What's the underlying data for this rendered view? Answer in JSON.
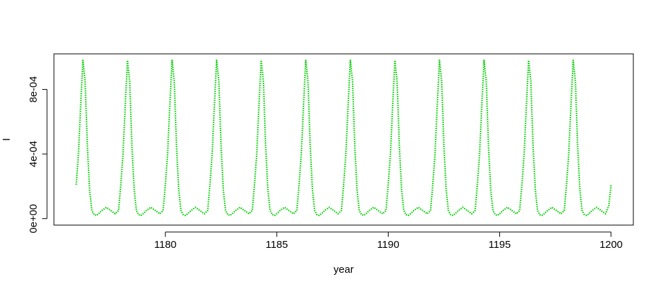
{
  "chart_data": {
    "type": "line",
    "title": "",
    "xlabel": "year",
    "ylabel": "I",
    "xlim": [
      1175.0,
      1201.0
    ],
    "ylim": [
      -4e-05,
      0.00102
    ],
    "x_ticks": [
      {
        "value": 1180,
        "label": "1180"
      },
      {
        "value": 1185,
        "label": "1185"
      },
      {
        "value": 1190,
        "label": "1190"
      },
      {
        "value": 1195,
        "label": "1195"
      },
      {
        "value": 1200,
        "label": "1200"
      }
    ],
    "y_ticks": [
      {
        "value": 0,
        "label": "0e+00"
      },
      {
        "value": 0.0004,
        "label": "4e-04"
      },
      {
        "value": 0.0008,
        "label": "8e-04"
      }
    ],
    "grid": false,
    "legend": "none",
    "series": [
      {
        "color": "#00cc00",
        "style": "dotted",
        "points": [
          [
            1176.0,
            0.00021
          ],
          [
            1176.1,
            0.0004
          ],
          [
            1176.2,
            0.0007
          ],
          [
            1176.3,
            0.00098
          ],
          [
            1176.4,
            0.00085
          ],
          [
            1176.5,
            0.00045
          ],
          [
            1176.6,
            0.00018
          ],
          [
            1176.7,
            5e-05
          ],
          [
            1176.8,
            2.5e-05
          ],
          [
            1176.9,
            2e-05
          ],
          [
            1177.0,
            3e-05
          ],
          [
            1177.15,
            5e-05
          ],
          [
            1177.35,
            7e-05
          ],
          [
            1177.55,
            5e-05
          ],
          [
            1177.75,
            3e-05
          ],
          [
            1177.9,
            5e-05
          ],
          [
            1178.0,
            0.00021
          ],
          [
            1178.1,
            0.0004
          ],
          [
            1178.2,
            0.0007
          ],
          [
            1178.3,
            0.00098
          ],
          [
            1178.4,
            0.00085
          ],
          [
            1178.5,
            0.00045
          ],
          [
            1178.6,
            0.00018
          ],
          [
            1178.7,
            5e-05
          ],
          [
            1178.8,
            2.5e-05
          ],
          [
            1178.9,
            2e-05
          ],
          [
            1179.0,
            3e-05
          ],
          [
            1179.15,
            5e-05
          ],
          [
            1179.35,
            7e-05
          ],
          [
            1179.55,
            5e-05
          ],
          [
            1179.75,
            3e-05
          ],
          [
            1179.9,
            5e-05
          ],
          [
            1180.0,
            0.00021
          ],
          [
            1180.1,
            0.0004
          ],
          [
            1180.2,
            0.0007
          ],
          [
            1180.3,
            0.00098
          ],
          [
            1180.4,
            0.00085
          ],
          [
            1180.5,
            0.00045
          ],
          [
            1180.6,
            0.00018
          ],
          [
            1180.7,
            5e-05
          ],
          [
            1180.8,
            2.5e-05
          ],
          [
            1180.9,
            2e-05
          ],
          [
            1181.0,
            3e-05
          ],
          [
            1181.15,
            5e-05
          ],
          [
            1181.35,
            7e-05
          ],
          [
            1181.55,
            5e-05
          ],
          [
            1181.75,
            3e-05
          ],
          [
            1181.9,
            5e-05
          ],
          [
            1182.0,
            0.00021
          ],
          [
            1182.1,
            0.0004
          ],
          [
            1182.2,
            0.0007
          ],
          [
            1182.3,
            0.00098
          ],
          [
            1182.4,
            0.00085
          ],
          [
            1182.5,
            0.00045
          ],
          [
            1182.6,
            0.00018
          ],
          [
            1182.7,
            5e-05
          ],
          [
            1182.8,
            2.5e-05
          ],
          [
            1182.9,
            2e-05
          ],
          [
            1183.0,
            3e-05
          ],
          [
            1183.15,
            5e-05
          ],
          [
            1183.35,
            7e-05
          ],
          [
            1183.55,
            5e-05
          ],
          [
            1183.75,
            3e-05
          ],
          [
            1183.9,
            5e-05
          ],
          [
            1184.0,
            0.00021
          ],
          [
            1184.1,
            0.0004
          ],
          [
            1184.2,
            0.0007
          ],
          [
            1184.3,
            0.00098
          ],
          [
            1184.4,
            0.00085
          ],
          [
            1184.5,
            0.00045
          ],
          [
            1184.6,
            0.00018
          ],
          [
            1184.7,
            5e-05
          ],
          [
            1184.8,
            2.5e-05
          ],
          [
            1184.9,
            2e-05
          ],
          [
            1185.0,
            3e-05
          ],
          [
            1185.15,
            5e-05
          ],
          [
            1185.35,
            7e-05
          ],
          [
            1185.55,
            5e-05
          ],
          [
            1185.75,
            3e-05
          ],
          [
            1185.9,
            5e-05
          ],
          [
            1186.0,
            0.00021
          ],
          [
            1186.1,
            0.0004
          ],
          [
            1186.2,
            0.0007
          ],
          [
            1186.3,
            0.00098
          ],
          [
            1186.4,
            0.00085
          ],
          [
            1186.5,
            0.00045
          ],
          [
            1186.6,
            0.00018
          ],
          [
            1186.7,
            5e-05
          ],
          [
            1186.8,
            2.5e-05
          ],
          [
            1186.9,
            2e-05
          ],
          [
            1187.0,
            3e-05
          ],
          [
            1187.15,
            5e-05
          ],
          [
            1187.35,
            7e-05
          ],
          [
            1187.55,
            5e-05
          ],
          [
            1187.75,
            3e-05
          ],
          [
            1187.9,
            5e-05
          ],
          [
            1188.0,
            0.00021
          ],
          [
            1188.1,
            0.0004
          ],
          [
            1188.2,
            0.0007
          ],
          [
            1188.3,
            0.00098
          ],
          [
            1188.4,
            0.00085
          ],
          [
            1188.5,
            0.00045
          ],
          [
            1188.6,
            0.00018
          ],
          [
            1188.7,
            5e-05
          ],
          [
            1188.8,
            2.5e-05
          ],
          [
            1188.9,
            2e-05
          ],
          [
            1189.0,
            3e-05
          ],
          [
            1189.15,
            5e-05
          ],
          [
            1189.35,
            7e-05
          ],
          [
            1189.55,
            5e-05
          ],
          [
            1189.75,
            3e-05
          ],
          [
            1189.9,
            5e-05
          ],
          [
            1190.0,
            0.00021
          ],
          [
            1190.1,
            0.0004
          ],
          [
            1190.2,
            0.0007
          ],
          [
            1190.3,
            0.00098
          ],
          [
            1190.4,
            0.00085
          ],
          [
            1190.5,
            0.00045
          ],
          [
            1190.6,
            0.00018
          ],
          [
            1190.7,
            5e-05
          ],
          [
            1190.8,
            2.5e-05
          ],
          [
            1190.9,
            2e-05
          ],
          [
            1191.0,
            3e-05
          ],
          [
            1191.15,
            5e-05
          ],
          [
            1191.35,
            7e-05
          ],
          [
            1191.55,
            5e-05
          ],
          [
            1191.75,
            3e-05
          ],
          [
            1191.9,
            5e-05
          ],
          [
            1192.0,
            0.00021
          ],
          [
            1192.1,
            0.0004
          ],
          [
            1192.2,
            0.0007
          ],
          [
            1192.3,
            0.00098
          ],
          [
            1192.4,
            0.00085
          ],
          [
            1192.5,
            0.00045
          ],
          [
            1192.6,
            0.00018
          ],
          [
            1192.7,
            5e-05
          ],
          [
            1192.8,
            2.5e-05
          ],
          [
            1192.9,
            2e-05
          ],
          [
            1193.0,
            3e-05
          ],
          [
            1193.15,
            5e-05
          ],
          [
            1193.35,
            7e-05
          ],
          [
            1193.55,
            5e-05
          ],
          [
            1193.75,
            3e-05
          ],
          [
            1193.9,
            5e-05
          ],
          [
            1194.0,
            0.00021
          ],
          [
            1194.1,
            0.0004
          ],
          [
            1194.2,
            0.0007
          ],
          [
            1194.3,
            0.00098
          ],
          [
            1194.4,
            0.00085
          ],
          [
            1194.5,
            0.00045
          ],
          [
            1194.6,
            0.00018
          ],
          [
            1194.7,
            5e-05
          ],
          [
            1194.8,
            2.5e-05
          ],
          [
            1194.9,
            2e-05
          ],
          [
            1195.0,
            3e-05
          ],
          [
            1195.15,
            5e-05
          ],
          [
            1195.35,
            7e-05
          ],
          [
            1195.55,
            5e-05
          ],
          [
            1195.75,
            3e-05
          ],
          [
            1195.9,
            5e-05
          ],
          [
            1196.0,
            0.00021
          ],
          [
            1196.1,
            0.0004
          ],
          [
            1196.2,
            0.0007
          ],
          [
            1196.3,
            0.00098
          ],
          [
            1196.4,
            0.00085
          ],
          [
            1196.5,
            0.00045
          ],
          [
            1196.6,
            0.00018
          ],
          [
            1196.7,
            5e-05
          ],
          [
            1196.8,
            2.5e-05
          ],
          [
            1196.9,
            2e-05
          ],
          [
            1197.0,
            3e-05
          ],
          [
            1197.15,
            5e-05
          ],
          [
            1197.35,
            7e-05
          ],
          [
            1197.55,
            5e-05
          ],
          [
            1197.75,
            3e-05
          ],
          [
            1197.9,
            5e-05
          ],
          [
            1198.0,
            0.00021
          ],
          [
            1198.1,
            0.0004
          ],
          [
            1198.2,
            0.0007
          ],
          [
            1198.3,
            0.00098
          ],
          [
            1198.4,
            0.00085
          ],
          [
            1198.5,
            0.00045
          ],
          [
            1198.6,
            0.00018
          ],
          [
            1198.7,
            5e-05
          ],
          [
            1198.8,
            2.5e-05
          ],
          [
            1198.9,
            2e-05
          ],
          [
            1199.0,
            3e-05
          ],
          [
            1199.15,
            5e-05
          ],
          [
            1199.35,
            7e-05
          ],
          [
            1199.55,
            5e-05
          ],
          [
            1199.75,
            3e-05
          ],
          [
            1199.9,
            8e-05
          ],
          [
            1200.0,
            0.00021
          ]
        ]
      }
    ]
  }
}
